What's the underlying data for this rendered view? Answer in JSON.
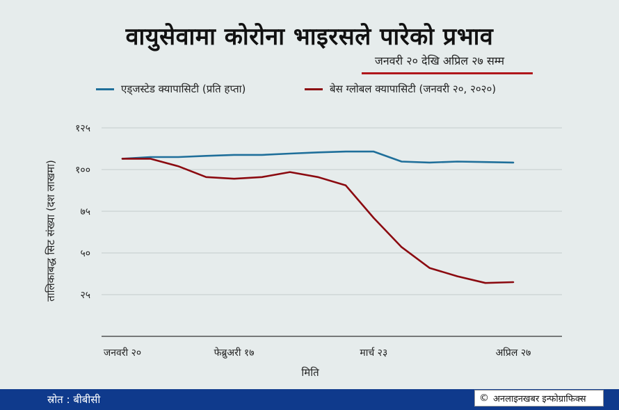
{
  "header": {
    "title": "वायुसेवामा कोरोना भाइरसले पारेको प्रभाव",
    "subtitle": "जनवरी २० देखि अप्रिल २७ सम्म"
  },
  "colors": {
    "accent": "#b0161b",
    "footer": "#0f3a8c"
  },
  "chart_data": {
    "type": "line",
    "ylabel": "तालिकाबद्ध सिट संख्या (दश लाखमा)",
    "xlabel": "मिति",
    "ylim": [
      0,
      125
    ],
    "yticks": [
      25,
      50,
      75,
      100,
      125
    ],
    "ytick_labels": [
      "२५",
      "५०",
      "७५",
      "१००",
      "१२५"
    ],
    "xtick_labels": [
      "जनवरी २०",
      "फेब्रुअरी १७",
      "मार्च २३",
      "अप्रिल २७"
    ],
    "xtick_index": [
      0,
      4,
      9,
      14
    ],
    "grid": true,
    "legend_placement": "top",
    "series": [
      {
        "name": "एड्जस्टेड क्यापासिटी (प्रति हप्ता)",
        "color": "#1f6f9a",
        "values": [
          106.5,
          107.5,
          107.5,
          108.2,
          108.8,
          108.8,
          109.6,
          110.3,
          110.8,
          110.8,
          104.8,
          104.2,
          104.8,
          104.5,
          104.2
        ]
      },
      {
        "name": "बेस ग्लोबल क्यापासिटी (जनवरी २०, २०२०)",
        "color": "#8b0a10",
        "values": [
          106.5,
          106.5,
          102.0,
          95.5,
          94.5,
          95.5,
          98.5,
          95.5,
          90.5,
          71.0,
          53.5,
          41.0,
          36.0,
          32.0,
          32.5
        ]
      }
    ]
  },
  "footer": {
    "source": "स्रोत : बीबीसी",
    "credit_symbol": "©",
    "credit": "अनलाइनखबर इन्फोग्राफिक्स"
  }
}
